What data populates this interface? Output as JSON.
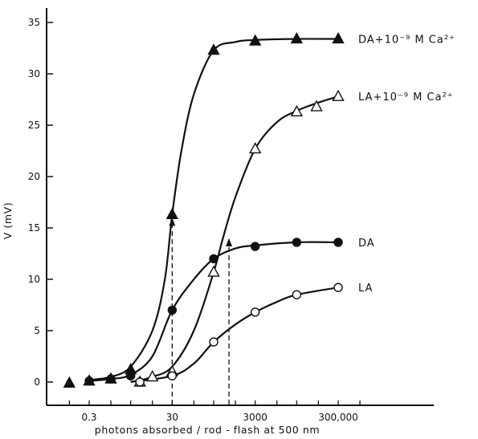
{
  "chart_data": {
    "type": "scatter",
    "title": "",
    "xlabel": "photons absorbed / rod - flash at 500 nm",
    "ylabel": "V (mV)",
    "x_scale": "log",
    "xlim": [
      0.03,
      3000000
    ],
    "ylim": [
      -1,
      36
    ],
    "x_ticks": [
      0.3,
      30,
      3000,
      300000
    ],
    "x_tick_labels": [
      "0.3",
      "30",
      "3000",
      "300,000"
    ],
    "y_ticks": [
      0,
      5,
      10,
      15,
      20,
      25,
      30,
      35
    ],
    "y_tick_labels": [
      "0",
      "5",
      "10",
      "15",
      "20",
      "25",
      "30",
      "35"
    ],
    "grid": false,
    "legend": "none",
    "series": [
      {
        "name": "DA+10⁻⁹ M Ca²⁺",
        "marker": "filled-triangle",
        "points": [
          [
            0.1,
            -0.1
          ],
          [
            0.3,
            0.1
          ],
          [
            1,
            0.3
          ],
          [
            3,
            1.2
          ],
          [
            30,
            16.3
          ],
          [
            300,
            32.3
          ],
          [
            3000,
            33.2
          ],
          [
            30000,
            33.4
          ],
          [
            300000,
            33.4
          ]
        ],
        "curve": [
          [
            0.3,
            0.2
          ],
          [
            1,
            0.5
          ],
          [
            3,
            1.5
          ],
          [
            10,
            5
          ],
          [
            20,
            10
          ],
          [
            30,
            16.3
          ],
          [
            50,
            22.5
          ],
          [
            100,
            28
          ],
          [
            300,
            32.3
          ],
          [
            1000,
            33.1
          ],
          [
            3000,
            33.3
          ],
          [
            30000,
            33.4
          ],
          [
            300000,
            33.4
          ]
        ]
      },
      {
        "name": "LA+10⁻⁹ M Ca²⁺",
        "marker": "open-triangle",
        "points": [
          [
            5,
            0
          ],
          [
            10,
            0.5
          ],
          [
            30,
            1
          ],
          [
            300,
            10.7
          ],
          [
            3000,
            22.7
          ],
          [
            30000,
            26.3
          ],
          [
            90000,
            26.8
          ],
          [
            300000,
            27.8
          ]
        ],
        "curve": [
          [
            3,
            0
          ],
          [
            10,
            0.5
          ],
          [
            30,
            1.5
          ],
          [
            100,
            5
          ],
          [
            300,
            10.7
          ],
          [
            500,
            14
          ],
          [
            1000,
            18
          ],
          [
            3000,
            22.7
          ],
          [
            10000,
            25.3
          ],
          [
            30000,
            26.4
          ],
          [
            100000,
            27.2
          ],
          [
            300000,
            27.8
          ]
        ]
      },
      {
        "name": "DA",
        "marker": "filled-circle",
        "points": [
          [
            0.3,
            0.1
          ],
          [
            1,
            0.3
          ],
          [
            3,
            0.6
          ],
          [
            30,
            7
          ],
          [
            300,
            12
          ],
          [
            3000,
            13.2
          ],
          [
            30000,
            13.6
          ],
          [
            300000,
            13.6
          ]
        ],
        "curve": [
          [
            0.3,
            0.1
          ],
          [
            1,
            0.3
          ],
          [
            3,
            0.7
          ],
          [
            10,
            2.5
          ],
          [
            30,
            7
          ],
          [
            100,
            10
          ],
          [
            300,
            12
          ],
          [
            1000,
            13
          ],
          [
            3000,
            13.3
          ],
          [
            30000,
            13.6
          ],
          [
            300000,
            13.6
          ]
        ]
      },
      {
        "name": "LA",
        "marker": "open-circle",
        "points": [
          [
            5,
            0
          ],
          [
            30,
            0.6
          ],
          [
            300,
            3.9
          ],
          [
            3000,
            6.8
          ],
          [
            30000,
            8.5
          ],
          [
            300000,
            9.2
          ]
        ],
        "curve": [
          [
            3,
            0
          ],
          [
            30,
            0.6
          ],
          [
            100,
            1.8
          ],
          [
            300,
            3.9
          ],
          [
            1000,
            5.6
          ],
          [
            3000,
            6.8
          ],
          [
            10000,
            7.8
          ],
          [
            30000,
            8.5
          ],
          [
            300000,
            9.2
          ]
        ]
      }
    ],
    "dashed_arrows": [
      {
        "x": 30,
        "y_from": 0,
        "y_to": 16.3
      },
      {
        "x": 700,
        "y_from": 0,
        "y_to": 14.3
      }
    ]
  }
}
